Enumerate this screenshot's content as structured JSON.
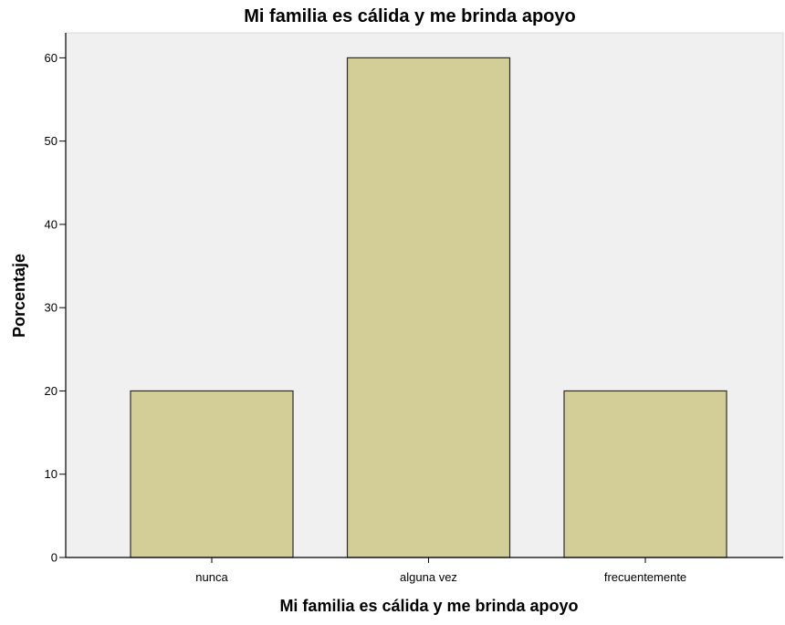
{
  "chart_data": {
    "type": "bar",
    "title": "Mi familia es cálida y me brinda apoyo",
    "xlabel": "Mi familia es cálida y me brinda apoyo",
    "ylabel": "Porcentaje",
    "categories": [
      "nunca",
      "alguna vez",
      "frecuentemente"
    ],
    "values": [
      20,
      60,
      20
    ],
    "ylim": [
      0,
      63
    ],
    "yticks": [
      0,
      10,
      20,
      30,
      40,
      50,
      60
    ],
    "grid": false,
    "legend": "none",
    "colors": {
      "bar_fill": "#d3ce98",
      "bar_stroke": "#2b2b2b",
      "plot_background": "#f0f0f0",
      "axis": "#000000"
    }
  }
}
